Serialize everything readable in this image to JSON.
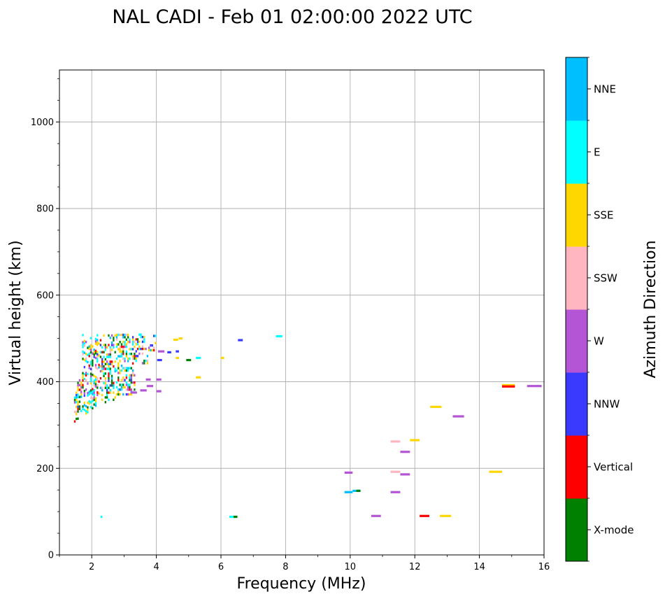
{
  "chart_data": {
    "type": "scatter",
    "title": "NAL CADI - Feb 01 02:00:00 2022 UTC",
    "xlabel": "Frequency (MHz)",
    "ylabel": "Virtual height (km)",
    "xlim": [
      1,
      16
    ],
    "ylim": [
      0,
      1120
    ],
    "x_major_ticks": [
      2,
      4,
      6,
      8,
      10,
      12,
      14,
      16
    ],
    "x_major_tick_labels": [
      "2",
      "4",
      "6",
      "8",
      "10",
      "12",
      "14",
      "16"
    ],
    "y_major_ticks": [
      0,
      200,
      400,
      600,
      800,
      1000
    ],
    "y_major_tick_labels": [
      "0",
      "200",
      "400",
      "600",
      "800",
      "1000"
    ],
    "grid": true,
    "colorbar": {
      "label": "Azimuth Direction",
      "categories": [
        "X-mode",
        "Vertical",
        "NNW",
        "W",
        "SSW",
        "SSE",
        "E",
        "NNE"
      ],
      "colors": [
        "#008000",
        "#ff0000",
        "#3a3aff",
        "#b455d6",
        "#ffb6c1",
        "#ffd700",
        "#00ffff",
        "#00bfff"
      ]
    },
    "cluster": {
      "description": "dense low-frequency echo region",
      "freq_range": [
        1.45,
        3.95
      ],
      "height_range": [
        300,
        510
      ]
    },
    "points": [
      {
        "f": 2.3,
        "h": 88,
        "d": "E",
        "w": 0.06
      },
      {
        "f": 6.35,
        "h": 88,
        "d": "E",
        "w": 0.18
      },
      {
        "f": 6.45,
        "h": 88,
        "d": "X-mode",
        "w": 0.12
      },
      {
        "f": 7.8,
        "h": 505,
        "d": "E",
        "w": 0.2
      },
      {
        "f": 6.6,
        "h": 496,
        "d": "NNW",
        "w": 0.15
      },
      {
        "f": 4.6,
        "h": 497,
        "d": "SSE",
        "w": 0.15
      },
      {
        "f": 4.75,
        "h": 500,
        "d": "SSE",
        "w": 0.12
      },
      {
        "f": 4.15,
        "h": 470,
        "d": "W",
        "w": 0.2
      },
      {
        "f": 4.4,
        "h": 468,
        "d": "NNW",
        "w": 0.12
      },
      {
        "f": 4.65,
        "h": 470,
        "d": "NNW",
        "w": 0.1
      },
      {
        "f": 4.65,
        "h": 455,
        "d": "SSE",
        "w": 0.1
      },
      {
        "f": 5.0,
        "h": 450,
        "d": "X-mode",
        "w": 0.15
      },
      {
        "f": 5.3,
        "h": 455,
        "d": "E",
        "w": 0.15
      },
      {
        "f": 6.05,
        "h": 455,
        "d": "SSE",
        "w": 0.1
      },
      {
        "f": 5.3,
        "h": 410,
        "d": "SSE",
        "w": 0.15
      },
      {
        "f": 4.1,
        "h": 450,
        "d": "NNW",
        "w": 0.15
      },
      {
        "f": 4.08,
        "h": 405,
        "d": "W",
        "w": 0.15
      },
      {
        "f": 4.08,
        "h": 378,
        "d": "W",
        "w": 0.15
      },
      {
        "f": 3.8,
        "h": 390,
        "d": "W",
        "w": 0.2
      },
      {
        "f": 3.75,
        "h": 405,
        "d": "W",
        "w": 0.15
      },
      {
        "f": 3.6,
        "h": 380,
        "d": "W",
        "w": 0.2
      },
      {
        "f": 3.3,
        "h": 375,
        "d": "W",
        "w": 0.2
      },
      {
        "f": 9.95,
        "h": 145,
        "d": "NNE",
        "w": 0.25
      },
      {
        "f": 10.2,
        "h": 148,
        "d": "NNE",
        "w": 0.25
      },
      {
        "f": 10.25,
        "h": 148,
        "d": "X-mode",
        "w": 0.12
      },
      {
        "f": 9.95,
        "h": 190,
        "d": "W",
        "w": 0.25
      },
      {
        "f": 10.8,
        "h": 90,
        "d": "W",
        "w": 0.3
      },
      {
        "f": 11.4,
        "h": 145,
        "d": "W",
        "w": 0.3
      },
      {
        "f": 11.4,
        "h": 192,
        "d": "SSW",
        "w": 0.3
      },
      {
        "f": 11.7,
        "h": 186,
        "d": "W",
        "w": 0.3
      },
      {
        "f": 11.7,
        "h": 238,
        "d": "W",
        "w": 0.3
      },
      {
        "f": 11.4,
        "h": 262,
        "d": "SSW",
        "w": 0.3
      },
      {
        "f": 12.0,
        "h": 265,
        "d": "SSE",
        "w": 0.3
      },
      {
        "f": 12.3,
        "h": 90,
        "d": "Vertical",
        "w": 0.3
      },
      {
        "f": 12.95,
        "h": 90,
        "d": "SSE",
        "w": 0.35
      },
      {
        "f": 12.65,
        "h": 342,
        "d": "SSE",
        "w": 0.35
      },
      {
        "f": 13.35,
        "h": 320,
        "d": "W",
        "w": 0.35
      },
      {
        "f": 14.5,
        "h": 192,
        "d": "SSE",
        "w": 0.4
      },
      {
        "f": 14.9,
        "h": 392,
        "d": "SSE",
        "w": 0.4
      },
      {
        "f": 14.9,
        "h": 389,
        "d": "Vertical",
        "w": 0.4
      },
      {
        "f": 15.7,
        "h": 390,
        "d": "W",
        "w": 0.45
      }
    ]
  }
}
